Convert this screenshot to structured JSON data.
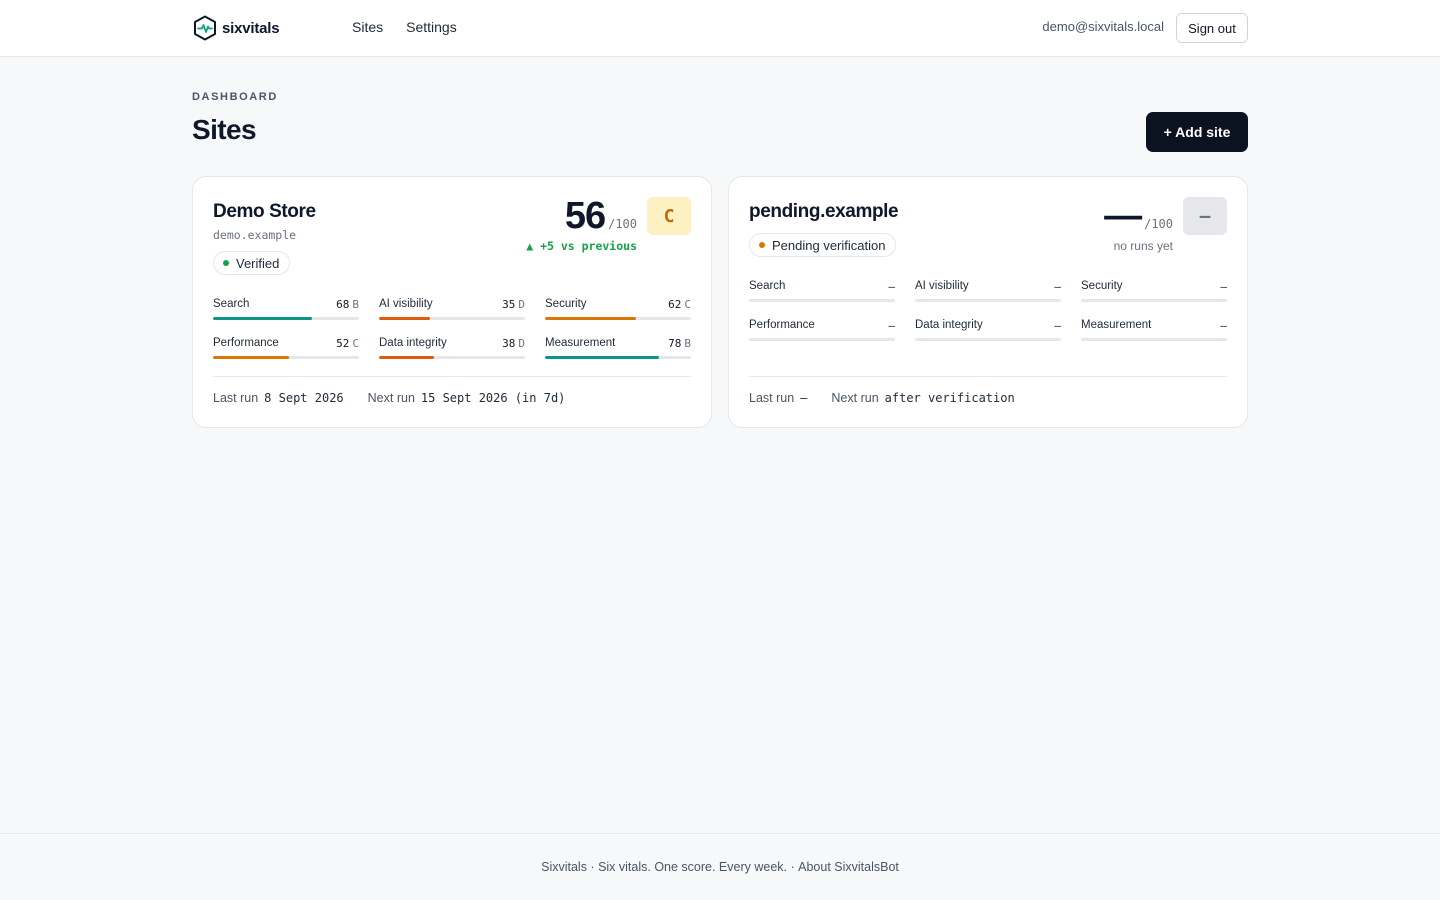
{
  "header": {
    "brand": "sixvitals",
    "nav": [
      "Sites",
      "Settings"
    ],
    "user_email": "demo@sixvitals.local",
    "sign_out_label": "Sign out"
  },
  "page": {
    "eyebrow": "DASHBOARD",
    "title": "Sites",
    "add_site_label": "+ Add site"
  },
  "sites": [
    {
      "name": "Demo Store",
      "domain": "demo.example",
      "status": "Verified",
      "status_color": "#16a34a",
      "score": "56",
      "score_max": "/100",
      "grade": "C",
      "grade_bg": "#fdf0c2",
      "grade_color": "#c26a0a",
      "delta": "▲ +5 vs previous",
      "metrics": [
        {
          "label": "Search",
          "value": "68",
          "grade": "B",
          "fraction": 0.68,
          "color": "#0f9488"
        },
        {
          "label": "AI visibility",
          "value": "35",
          "grade": "D",
          "fraction": 0.35,
          "color": "#dc5d0c"
        },
        {
          "label": "Security",
          "value": "62",
          "grade": "C",
          "fraction": 0.62,
          "color": "#d97706"
        },
        {
          "label": "Performance",
          "value": "52",
          "grade": "C",
          "fraction": 0.52,
          "color": "#d97706"
        },
        {
          "label": "Data integrity",
          "value": "38",
          "grade": "D",
          "fraction": 0.38,
          "color": "#dc5d0c"
        },
        {
          "label": "Measurement",
          "value": "78",
          "grade": "B",
          "fraction": 0.78,
          "color": "#0f9488"
        }
      ],
      "last_run_label": "Last run",
      "last_run": "8 Sept 2026",
      "next_run_label": "Next run",
      "next_run": "15 Sept 2026 (in 7d)"
    },
    {
      "name": "pending.example",
      "status": "Pending verification",
      "status_color": "#d97706",
      "score": "—",
      "score_max": "/100",
      "grade": "—",
      "grade_bg": "#e5e7eb",
      "grade_color": "#6b7280",
      "no_runs": "no runs yet",
      "metrics": [
        {
          "label": "Search",
          "value": "–"
        },
        {
          "label": "AI visibility",
          "value": "–"
        },
        {
          "label": "Security",
          "value": "–"
        },
        {
          "label": "Performance",
          "value": "–"
        },
        {
          "label": "Data integrity",
          "value": "–"
        },
        {
          "label": "Measurement",
          "value": "–"
        }
      ],
      "last_run_label": "Last run",
      "last_run": "—",
      "next_run_label": "Next run",
      "next_run": "after verification"
    }
  ],
  "footer": {
    "brand": "Sixvitals",
    "sep1": " · ",
    "tagline": "Six vitals. One score. Every week.",
    "sep2": " · ",
    "link": "About SixvitalsBot"
  }
}
